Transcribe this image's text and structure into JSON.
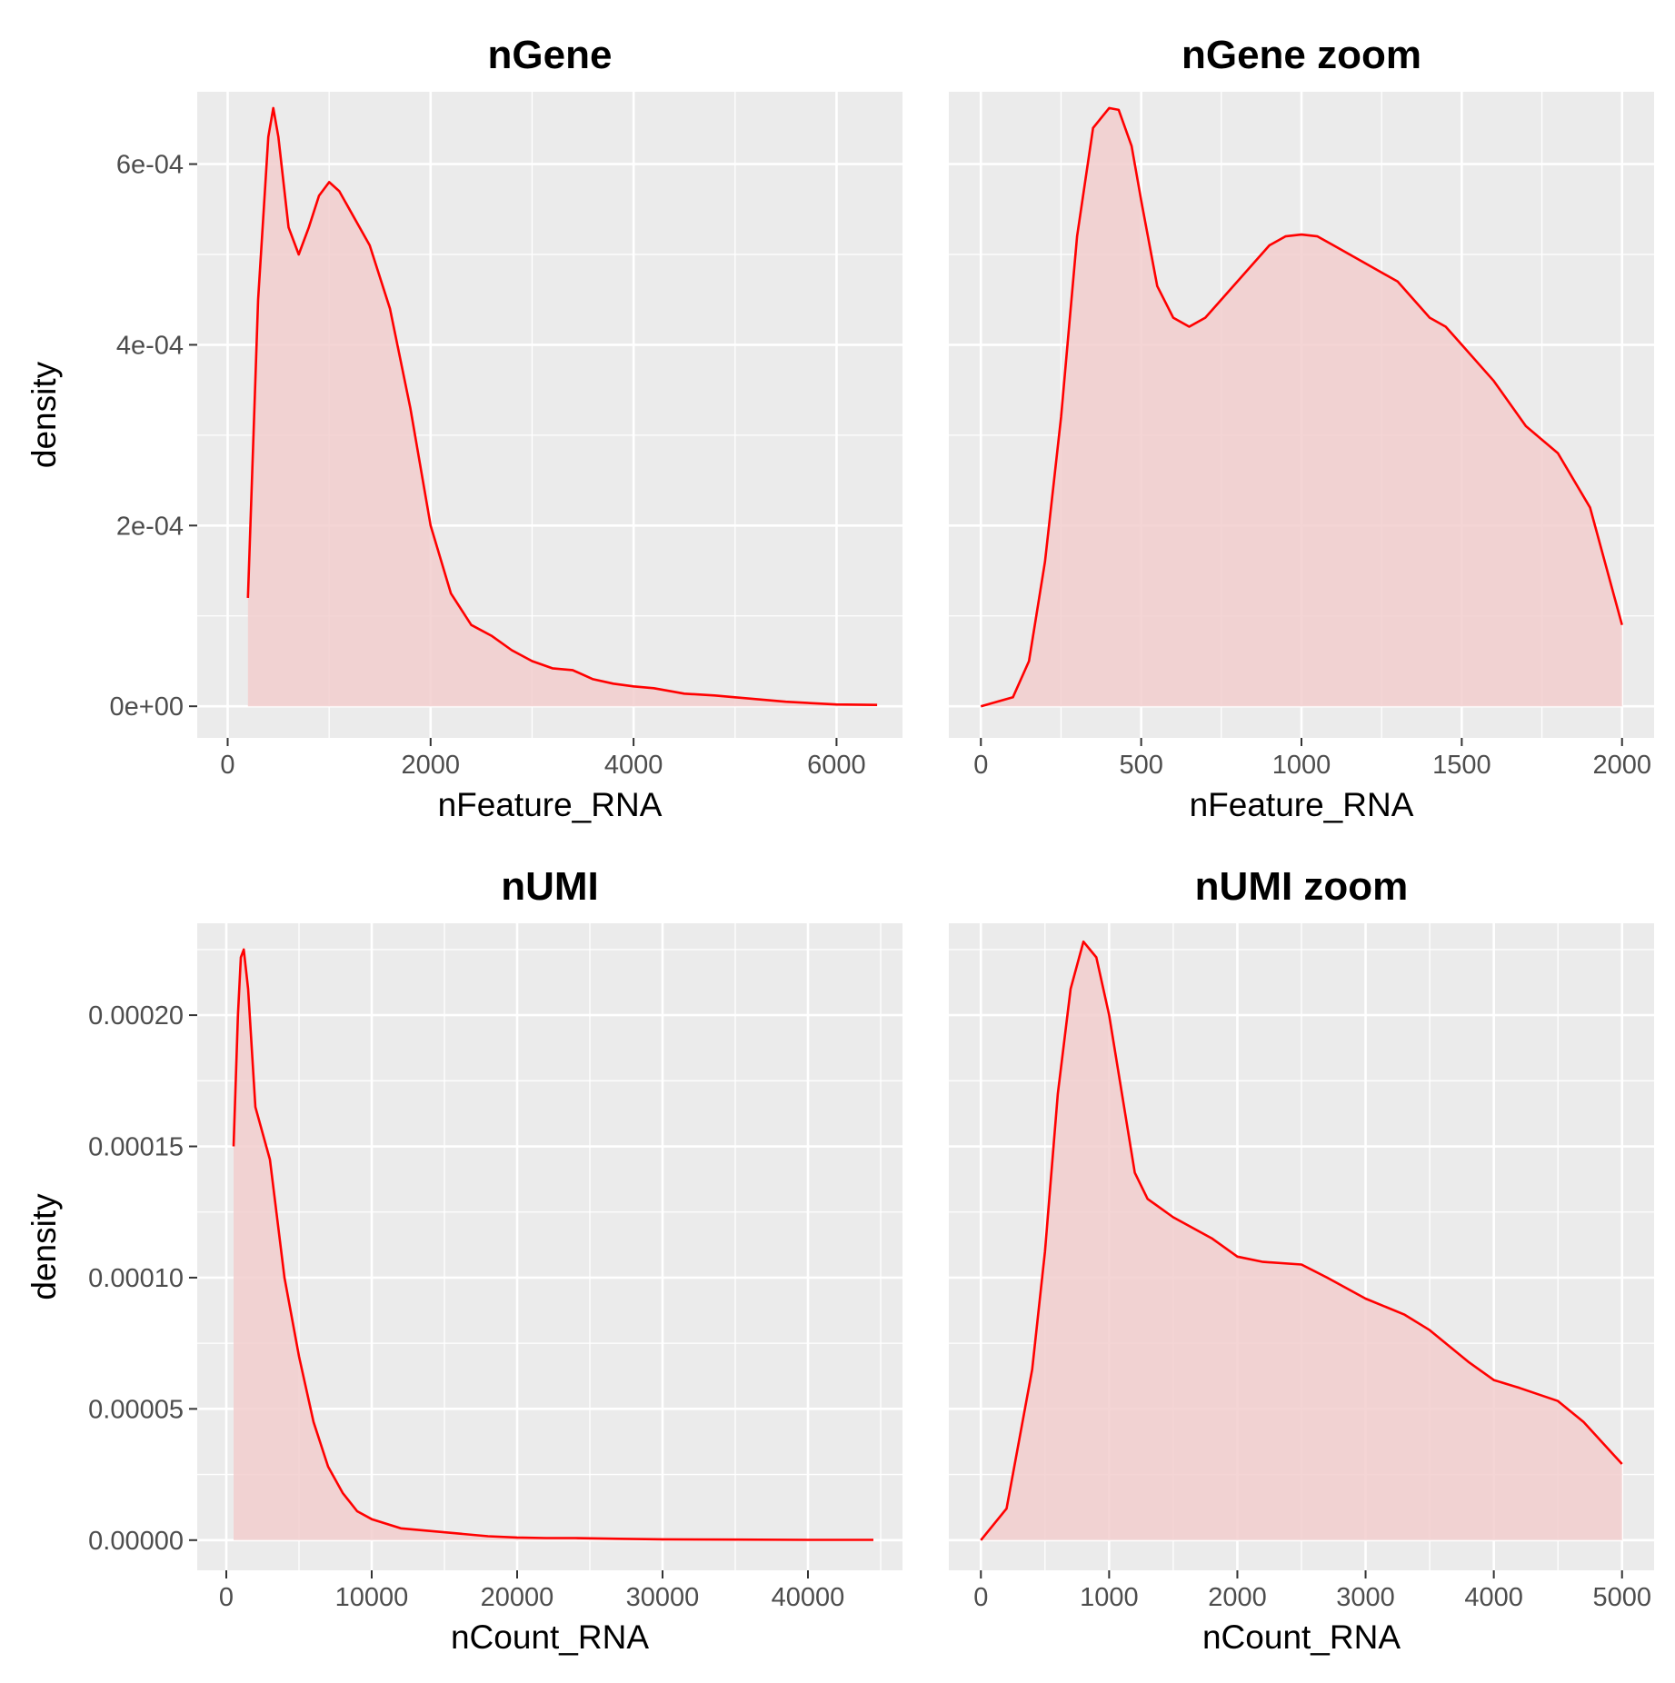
{
  "chart_data": [
    {
      "type": "area",
      "title": "nGene",
      "xlabel": "nFeature_RNA",
      "ylabel": "density",
      "xlim": [
        -300,
        6650
      ],
      "ylim": [
        -3.5e-05,
        0.00068
      ],
      "xticks": [
        0,
        2000,
        4000,
        6000
      ],
      "xtick_labels": [
        "0",
        "2000",
        "4000",
        "6000"
      ],
      "yticks": [
        0,
        0.0002,
        0.0004,
        0.0006
      ],
      "ytick_labels": [
        "0e+00",
        "2e-04",
        "4e-04",
        "6e-04"
      ],
      "grid": true,
      "line_color": "#FF0000",
      "fill_color": "#F2CECE",
      "x": [
        200,
        300,
        400,
        450,
        500,
        600,
        700,
        800,
        900,
        1000,
        1100,
        1200,
        1400,
        1600,
        1800,
        2000,
        2200,
        2400,
        2600,
        2800,
        3000,
        3200,
        3400,
        3600,
        3800,
        4000,
        4200,
        4500,
        4800,
        5000,
        5500,
        6000,
        6400
      ],
      "y": [
        0.00012,
        0.00045,
        0.00063,
        0.000662,
        0.00063,
        0.00053,
        0.0005,
        0.00053,
        0.000565,
        0.00058,
        0.00057,
        0.00055,
        0.00051,
        0.00044,
        0.00033,
        0.0002,
        0.000125,
        9e-05,
        7.8e-05,
        6.2e-05,
        5e-05,
        4.2e-05,
        4e-05,
        3e-05,
        2.5e-05,
        2.2e-05,
        2e-05,
        1.4e-05,
        1.2e-05,
        1e-05,
        5e-06,
        2e-06,
        1.5e-06
      ]
    },
    {
      "type": "area",
      "title": "nGene zoom",
      "xlabel": "nFeature_RNA",
      "ylabel": "",
      "xlim": [
        -100,
        2100
      ],
      "ylim": [
        -3.5e-05,
        0.00068
      ],
      "xticks": [
        0,
        500,
        1000,
        1500,
        2000
      ],
      "xtick_labels": [
        "0",
        "500",
        "1000",
        "1500",
        "2000"
      ],
      "yticks": [],
      "ytick_labels": [],
      "grid": true,
      "line_color": "#FF0000",
      "fill_color": "#F2CECE",
      "x": [
        0,
        100,
        150,
        200,
        250,
        300,
        350,
        400,
        430,
        470,
        500,
        550,
        600,
        650,
        700,
        800,
        900,
        950,
        1000,
        1050,
        1100,
        1200,
        1250,
        1300,
        1400,
        1450,
        1500,
        1600,
        1700,
        1800,
        1900,
        2000
      ],
      "y": [
        0,
        1e-05,
        5e-05,
        0.00016,
        0.00032,
        0.00052,
        0.00064,
        0.000662,
        0.00066,
        0.00062,
        0.00056,
        0.000465,
        0.00043,
        0.00042,
        0.00043,
        0.00047,
        0.00051,
        0.00052,
        0.000522,
        0.00052,
        0.00051,
        0.00049,
        0.00048,
        0.00047,
        0.00043,
        0.00042,
        0.0004,
        0.00036,
        0.00031,
        0.00028,
        0.00022,
        9e-05
      ]
    },
    {
      "type": "area",
      "title": "nUMI",
      "xlabel": "nCount_RNA",
      "ylabel": "density",
      "xlim": [
        -2000,
        46500
      ],
      "ylim": [
        -1.15e-05,
        0.000235
      ],
      "xticks": [
        0,
        10000,
        20000,
        30000,
        40000
      ],
      "xtick_labels": [
        "0",
        "10000",
        "20000",
        "30000",
        "40000"
      ],
      "yticks": [
        0,
        5e-05,
        0.0001,
        0.00015,
        0.0002
      ],
      "ytick_labels": [
        "0.00000",
        "0.00005",
        "0.00010",
        "0.00015",
        "0.00020"
      ],
      "grid": true,
      "line_color": "#FF0000",
      "fill_color": "#F2CECE",
      "x": [
        500,
        800,
        1000,
        1200,
        1500,
        2000,
        3000,
        4000,
        5000,
        6000,
        7000,
        8000,
        9000,
        10000,
        12000,
        14000,
        16000,
        18000,
        20000,
        22000,
        24000,
        27000,
        30000,
        35000,
        40000,
        44500
      ],
      "y": [
        0.00015,
        0.0002,
        0.000222,
        0.000225,
        0.00021,
        0.000165,
        0.000145,
        0.0001,
        7e-05,
        4.5e-05,
        2.8e-05,
        1.8e-05,
        1.1e-05,
        8e-06,
        4.5e-06,
        3.5e-06,
        2.5e-06,
        1.5e-06,
        1e-06,
        8e-07,
        8e-07,
        5e-07,
        3e-07,
        2e-07,
        1e-07,
        1e-07
      ]
    },
    {
      "type": "area",
      "title": "nUMI zoom",
      "xlabel": "nCount_RNA",
      "ylabel": "",
      "xlim": [
        -250,
        5250
      ],
      "ylim": [
        -1.15e-05,
        0.000235
      ],
      "xticks": [
        0,
        1000,
        2000,
        3000,
        4000,
        5000
      ],
      "xtick_labels": [
        "0",
        "1000",
        "2000",
        "3000",
        "4000",
        "5000"
      ],
      "yticks": [],
      "ytick_labels": [],
      "grid": true,
      "line_color": "#FF0000",
      "fill_color": "#F2CECE",
      "x": [
        0,
        200,
        400,
        500,
        600,
        700,
        800,
        900,
        1000,
        1100,
        1200,
        1300,
        1500,
        1800,
        2000,
        2200,
        2500,
        2700,
        3000,
        3300,
        3500,
        3800,
        4000,
        4200,
        4500,
        4700,
        5000
      ],
      "y": [
        0,
        1.2e-05,
        6.5e-05,
        0.00011,
        0.00017,
        0.00021,
        0.000228,
        0.000222,
        0.0002,
        0.00017,
        0.00014,
        0.00013,
        0.000123,
        0.000115,
        0.000108,
        0.000106,
        0.000105,
        0.0001,
        9.2e-05,
        8.6e-05,
        8e-05,
        6.8e-05,
        6.1e-05,
        5.8e-05,
        5.3e-05,
        4.5e-05,
        2.9e-05
      ]
    }
  ]
}
